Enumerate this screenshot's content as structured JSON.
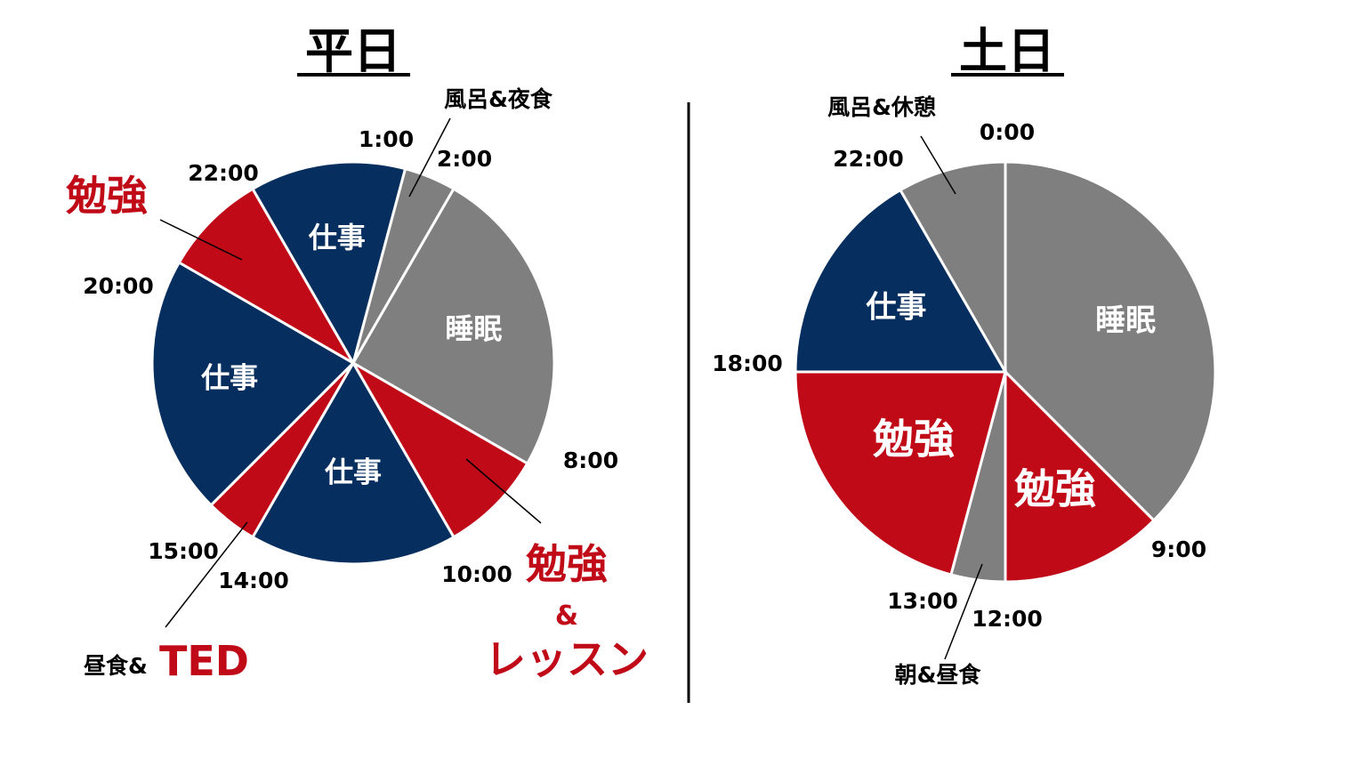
{
  "chart_data": [
    {
      "type": "pie",
      "title": "平日",
      "unit": "hours",
      "start_time": "1:00",
      "slices": [
        {
          "label": "",
          "callout": "風呂&夜食",
          "start": "1:00",
          "end": "2:00",
          "hours": 1,
          "color": "#7f7f7f"
        },
        {
          "label": "睡眠",
          "start": "2:00",
          "end": "8:00",
          "hours": 6,
          "color": "#7f7f7f"
        },
        {
          "label": "",
          "callout": "勉強\n&\nレッスン",
          "start": "8:00",
          "end": "10:00",
          "hours": 2,
          "color": "#c00a17"
        },
        {
          "label": "仕事",
          "start": "10:00",
          "end": "14:00",
          "hours": 4,
          "color": "#062f5f"
        },
        {
          "label": "",
          "callout": "昼食&TED",
          "start": "14:00",
          "end": "15:00",
          "hours": 1,
          "color": "#c00a17"
        },
        {
          "label": "仕事",
          "start": "15:00",
          "end": "20:00",
          "hours": 5,
          "color": "#062f5f"
        },
        {
          "label": "",
          "callout": "勉強",
          "start": "20:00",
          "end": "22:00",
          "hours": 2,
          "color": "#c00a17"
        },
        {
          "label": "仕事",
          "start": "22:00",
          "end": "1:00",
          "hours": 3,
          "color": "#062f5f"
        }
      ],
      "time_labels": [
        "1:00",
        "2:00",
        "8:00",
        "10:00",
        "14:00",
        "15:00",
        "20:00",
        "22:00"
      ]
    },
    {
      "type": "pie",
      "title": "土日",
      "unit": "hours",
      "start_time": "0:00",
      "slices": [
        {
          "label": "睡眠",
          "start": "0:00",
          "end": "9:00",
          "hours": 9,
          "color": "#7f7f7f"
        },
        {
          "label": "勉強",
          "start": "9:00",
          "end": "12:00",
          "hours": 3,
          "color": "#c00a17"
        },
        {
          "label": "",
          "callout": "朝&昼食",
          "start": "12:00",
          "end": "13:00",
          "hours": 1,
          "color": "#7f7f7f"
        },
        {
          "label": "勉強",
          "start": "13:00",
          "end": "18:00",
          "hours": 5,
          "color": "#c00a17"
        },
        {
          "label": "仕事",
          "start": "18:00",
          "end": "22:00",
          "hours": 4,
          "color": "#062f5f"
        },
        {
          "label": "",
          "callout": "風呂&休憩",
          "start": "22:00",
          "end": "0:00",
          "hours": 2,
          "color": "#7f7f7f"
        }
      ],
      "time_labels": [
        "0:00",
        "9:00",
        "12:00",
        "13:00",
        "18:00",
        "22:00"
      ]
    }
  ],
  "colors": {
    "sleep": "#7f7f7f",
    "study": "#c00a17",
    "work": "#062f5f",
    "divider": "#000000"
  }
}
